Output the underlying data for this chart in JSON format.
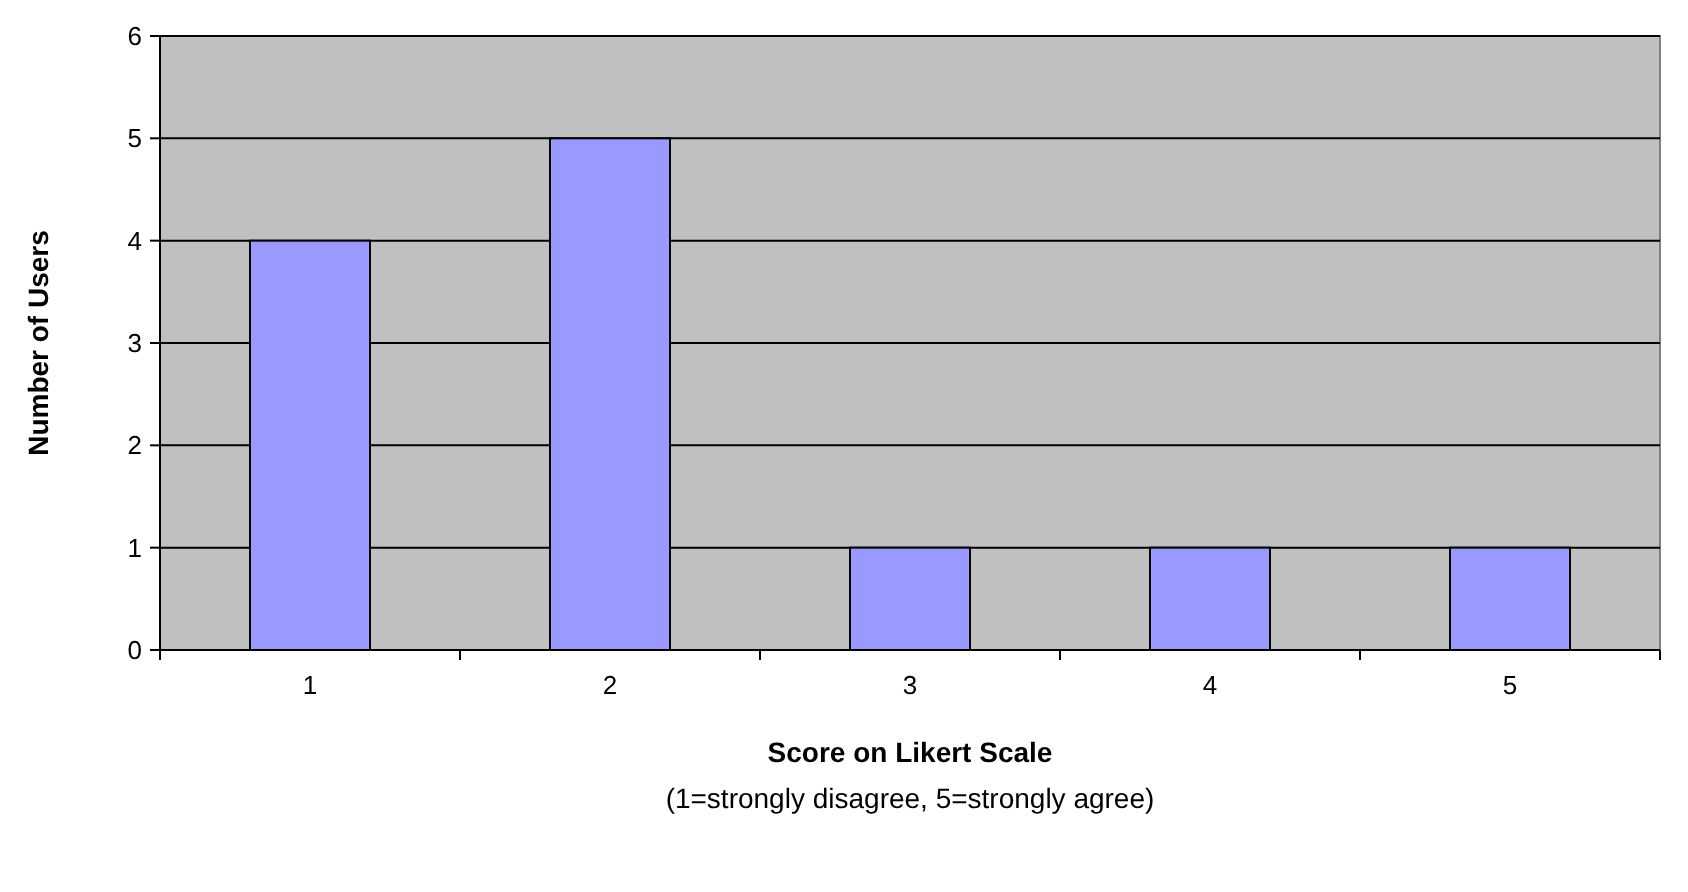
{
  "chart_data": {
    "type": "bar",
    "xlabel": "Score on Likert Scale",
    "ylabel": "Number of Users",
    "annotations": [
      "(1=strongly disagree, 5=strongly agree)"
    ],
    "categories": [
      "1",
      "2",
      "3",
      "4",
      "5"
    ],
    "values": [
      4,
      5,
      1,
      1,
      1
    ],
    "color": "#9999ff",
    "ylim": [
      0,
      6
    ],
    "yticks": [
      0,
      1,
      2,
      3,
      4,
      5,
      6
    ],
    "grid": "y"
  }
}
